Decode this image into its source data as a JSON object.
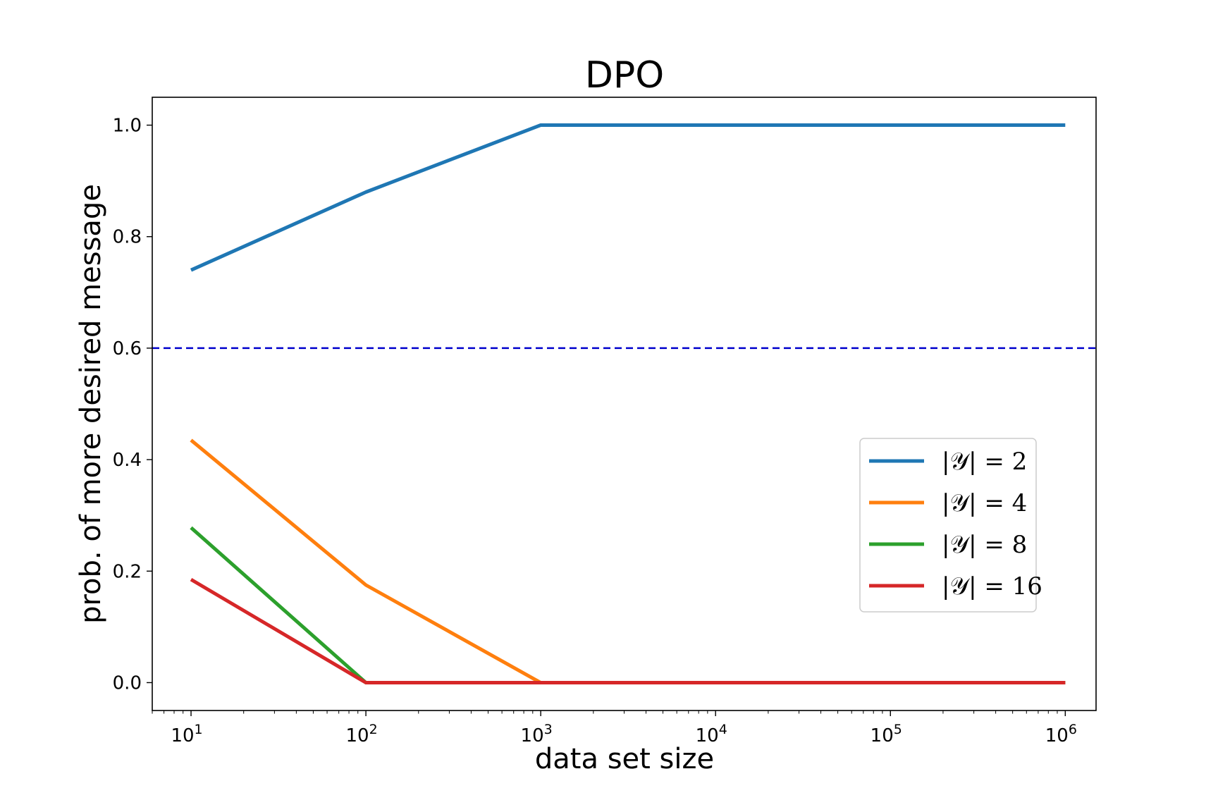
{
  "chart_data": {
    "type": "line",
    "title": "DPO",
    "xlabel": "data set size",
    "ylabel": "prob. of more desired message",
    "xscale": "log",
    "xlim": [
      6,
      1500000
    ],
    "ylim": [
      -0.05,
      1.05
    ],
    "grid": false,
    "legend_position": "center-right",
    "x": [
      10,
      100,
      1000,
      10000,
      100000,
      1000000
    ],
    "xticks": [
      {
        "value": 10,
        "base": "10",
        "exp": "1"
      },
      {
        "value": 100,
        "base": "10",
        "exp": "2"
      },
      {
        "value": 1000,
        "base": "10",
        "exp": "3"
      },
      {
        "value": 10000,
        "base": "10",
        "exp": "4"
      },
      {
        "value": 100000,
        "base": "10",
        "exp": "5"
      },
      {
        "value": 1000000,
        "base": "10",
        "exp": "6"
      }
    ],
    "yticks": [
      {
        "value": 0.0,
        "label": "0.0"
      },
      {
        "value": 0.2,
        "label": "0.2"
      },
      {
        "value": 0.4,
        "label": "0.4"
      },
      {
        "value": 0.6,
        "label": "0.6"
      },
      {
        "value": 0.8,
        "label": "0.8"
      },
      {
        "value": 1.0,
        "label": "1.0"
      }
    ],
    "reference_line": {
      "y": 0.6,
      "style": "dashed",
      "color": "#0000cc"
    },
    "series": [
      {
        "name": "|𝒴| = 2",
        "color": "#1f77b4",
        "values": [
          0.74,
          0.88,
          1.0,
          1.0,
          1.0,
          1.0
        ]
      },
      {
        "name": "|𝒴| = 4",
        "color": "#ff7f0e",
        "values": [
          0.435,
          0.175,
          0.0,
          0.0,
          0.0,
          0.0
        ]
      },
      {
        "name": "|𝒴| = 8",
        "color": "#2ca02c",
        "values": [
          0.278,
          0.0,
          0.0,
          0.0,
          0.0,
          0.0
        ]
      },
      {
        "name": "|𝒴| = 16",
        "color": "#d62728",
        "values": [
          0.185,
          0.0,
          0.0,
          0.0,
          0.0,
          0.0
        ]
      }
    ]
  }
}
